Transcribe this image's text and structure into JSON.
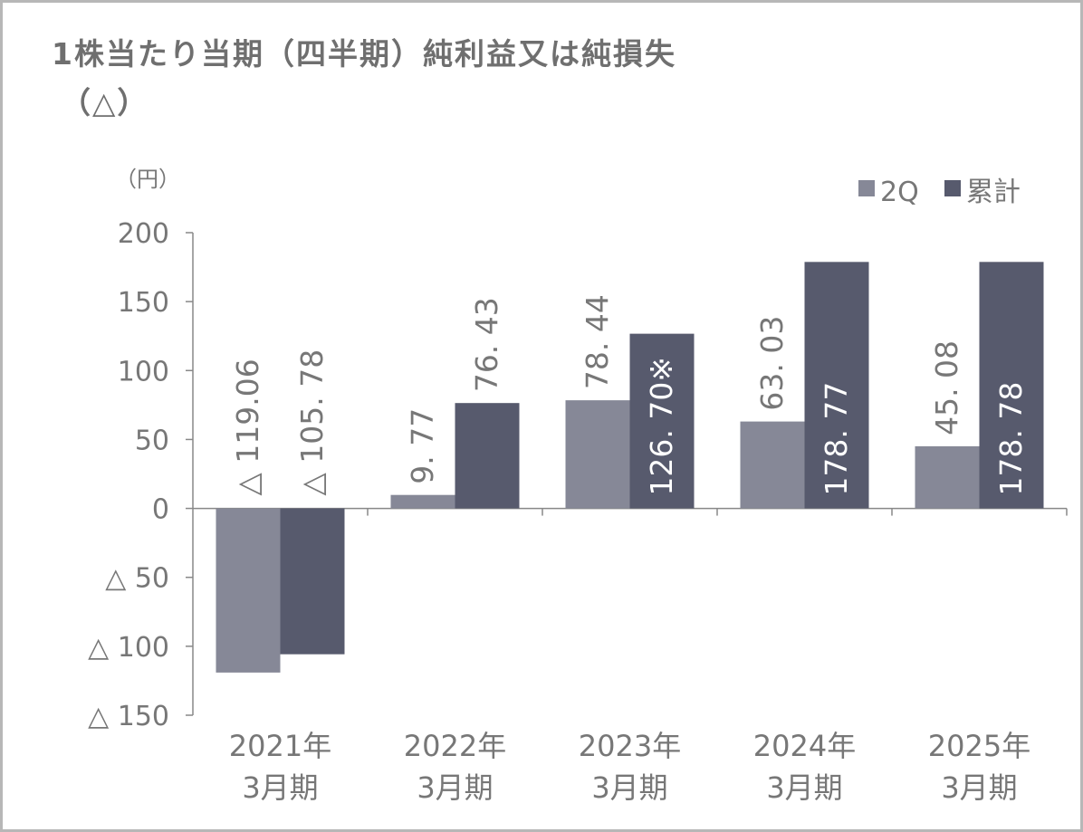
{
  "title_lines": [
    "1株当たり当期（四半期）純利益又は純損失",
    "（△）"
  ],
  "colors": {
    "q2": "#868897",
    "cumulative": "#575a6d",
    "axis": "#888888",
    "text": "#777777",
    "label_inside": "#ffffff"
  },
  "chart_data": {
    "type": "bar",
    "title": "1株当たり当期（四半期）純利益又は純損失（△）",
    "ylabel": "（円）",
    "xlabel": "",
    "ylim": [
      -150,
      200
    ],
    "yticks": [
      200,
      150,
      100,
      50,
      0,
      -50,
      -100,
      -150
    ],
    "ytick_labels": [
      "200",
      "150",
      "100",
      "50",
      "0",
      "△ 50",
      "△ 100",
      "△ 150"
    ],
    "categories": [
      [
        "2021年",
        "3月期"
      ],
      [
        "2022年",
        "3月期"
      ],
      [
        "2023年",
        "3月期"
      ],
      [
        "2024年",
        "3月期"
      ],
      [
        "2025年",
        "3月期"
      ]
    ],
    "legend_position": "top-right",
    "series": [
      {
        "name": "2Q",
        "color": "#868897",
        "values": [
          -119.06,
          9.77,
          78.44,
          63.03,
          45.08
        ],
        "labels": [
          "△ 119.06",
          "9. 77",
          "78. 44",
          "63. 03",
          "45. 08"
        ]
      },
      {
        "name": "累計",
        "color": "#575a6d",
        "values": [
          -105.78,
          76.43,
          126.7,
          178.77,
          178.78
        ],
        "labels": [
          "△ 105. 78",
          "76. 43",
          "126. 70※",
          "178. 77",
          "178. 78"
        ]
      }
    ]
  }
}
